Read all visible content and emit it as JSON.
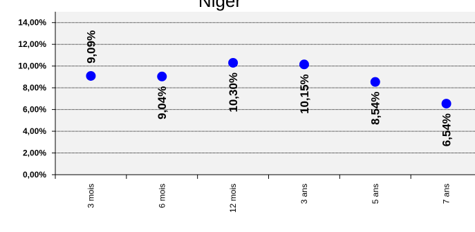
{
  "chart_data": {
    "type": "scatter",
    "title": "Niger",
    "categories": [
      "3 mois",
      "6 mois",
      "12 mois",
      "3 ans",
      "5 ans",
      "7 ans"
    ],
    "values": [
      9.09,
      9.04,
      10.3,
      10.15,
      8.54,
      6.54
    ],
    "data_labels": [
      "9,09%",
      "9,04%",
      "10,30%",
      "10,15%",
      "8,54%",
      "6,54%"
    ],
    "yticks": [
      "0,00%",
      "2,00%",
      "4,00%",
      "6,00%",
      "8,00%",
      "10,00%",
      "12,00%",
      "14,00%"
    ],
    "ylim": [
      0,
      15
    ],
    "grid": true,
    "colors": {
      "marker": "#0000ff",
      "plot_bg": "#f2f2f2",
      "grid": "#000000"
    }
  }
}
